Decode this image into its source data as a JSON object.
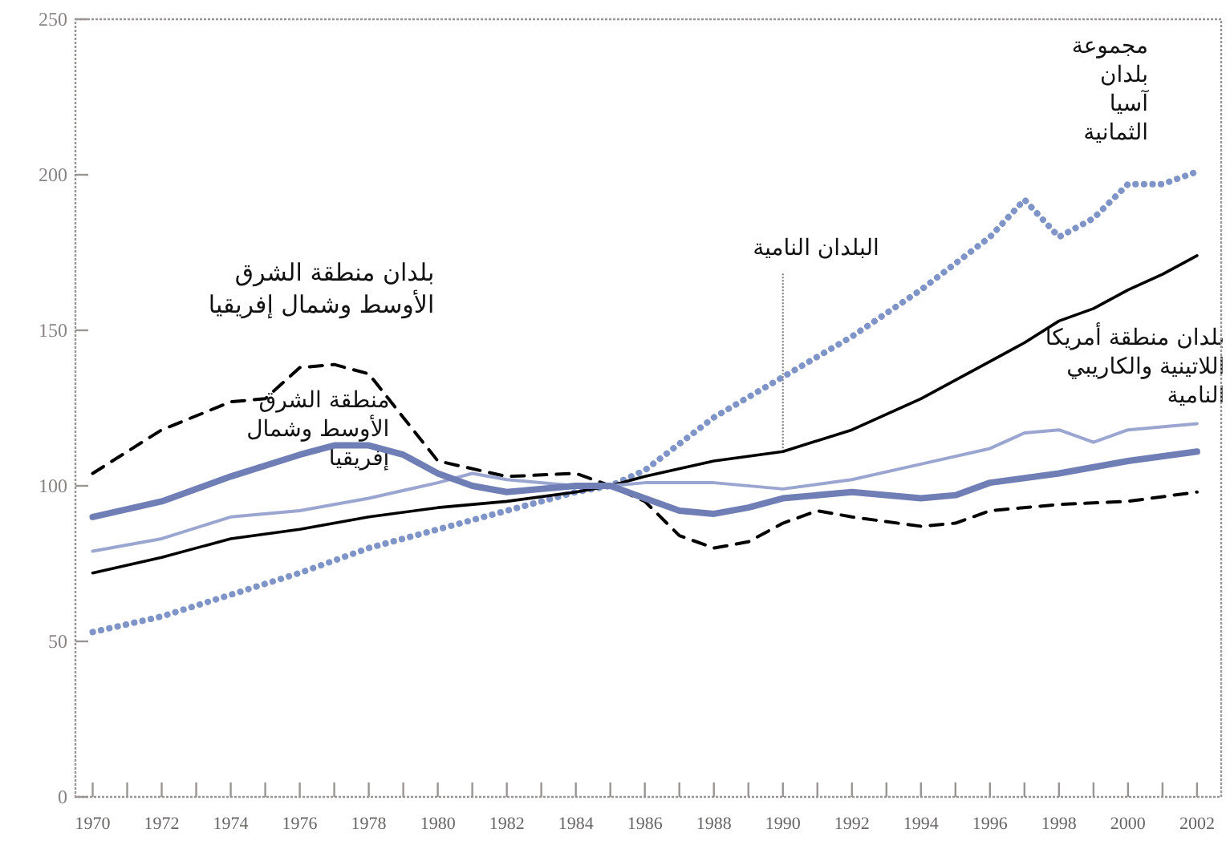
{
  "chart_data": {
    "type": "line",
    "x": [
      1970,
      1972,
      1974,
      1976,
      1978,
      1980,
      1982,
      1984,
      1985,
      1986,
      1988,
      1990,
      1992,
      1994,
      1996,
      1997,
      1998,
      1999,
      2000,
      2001,
      2002
    ],
    "series": [
      {
        "color": "#7f95c8",
        "line_style": "dotted",
        "values": [
          53,
          58,
          65,
          72,
          80,
          86,
          92,
          98,
          100,
          105,
          122,
          135,
          148,
          163,
          180,
          192,
          180,
          186,
          197,
          197,
          201
        ]
      },
      {
        "color": "#000000",
        "line_style": "solid",
        "values": [
          72,
          77,
          83,
          86,
          90,
          93,
          95,
          98,
          100,
          103,
          108,
          111,
          118,
          128,
          140,
          146,
          153,
          157,
          163,
          168,
          174
        ]
      },
      {
        "color": "#000000",
        "line_style": "dashed",
        "x": [
          1970,
          1972,
          1974,
          1975,
          1976,
          1977,
          1978,
          1979,
          1980,
          1982,
          1984,
          1985,
          1986,
          1987,
          1988,
          1989,
          1990,
          1991,
          1992,
          1994,
          1995,
          1996,
          1998,
          2000,
          2002
        ],
        "values": [
          104,
          118,
          127,
          128,
          138,
          139,
          136,
          122,
          108,
          103,
          104,
          100,
          95,
          84,
          80,
          82,
          88,
          92,
          90,
          87,
          88,
          92,
          94,
          95,
          98
        ]
      },
      {
        "color": "#9aa6d0",
        "line_style": "solid",
        "x": [
          1970,
          1972,
          1974,
          1976,
          1978,
          1980,
          1981,
          1982,
          1984,
          1985,
          1986,
          1988,
          1990,
          1992,
          1994,
          1996,
          1997,
          1998,
          1999,
          2000,
          2002
        ],
        "values": [
          79,
          83,
          90,
          92,
          96,
          101,
          104,
          102,
          100,
          100,
          101,
          101,
          99,
          102,
          107,
          112,
          117,
          118,
          114,
          118,
          120
        ]
      },
      {
        "color": "#6f7fb5",
        "line_style": "solid",
        "x": [
          1970,
          1972,
          1974,
          1976,
          1977,
          1978,
          1979,
          1980,
          1981,
          1982,
          1984,
          1985,
          1986,
          1987,
          1988,
          1989,
          1990,
          1992,
          1994,
          1995,
          1996,
          1998,
          2000,
          2002
        ],
        "values": [
          90,
          95,
          103,
          110,
          113,
          113,
          110,
          104,
          100,
          98,
          100,
          100,
          96,
          92,
          91,
          93,
          96,
          98,
          96,
          97,
          101,
          104,
          108,
          111
        ]
      }
    ],
    "xlim": [
      1969.5,
      2002.7
    ],
    "xticks": [
      1970,
      {
        "value": 1971,
        "label": null
      },
      1972,
      {
        "value": 1973,
        "label": null
      },
      1974,
      {
        "value": 1975,
        "label": null
      },
      1976,
      {
        "value": 1977,
        "label": null
      },
      1978,
      {
        "value": 1979,
        "label": null
      },
      1980,
      {
        "value": 1981,
        "label": null
      },
      1982,
      {
        "value": 1983,
        "label": null
      },
      1984,
      {
        "value": 1985,
        "label": null
      },
      1986,
      {
        "value": 1987,
        "label": null
      },
      1988,
      {
        "value": 1989,
        "label": null
      },
      1990,
      {
        "value": 1991,
        "label": null
      },
      1992,
      {
        "value": 1993,
        "label": null
      },
      1994,
      {
        "value": 1995,
        "label": null
      },
      1996,
      {
        "value": 1997,
        "label": null
      },
      1998,
      {
        "value": 1999,
        "label": null
      },
      2000,
      {
        "value": 2001,
        "label": null
      },
      2002
    ],
    "ylim": [
      0,
      250
    ],
    "yticks": [
      0,
      50,
      100,
      150,
      200,
      250
    ],
    "grid": false,
    "annotations": [
      "مجموعة بلدان آسيا الثمانية",
      {
        "text": "البلدان النامية",
        "x": 1990,
        "y": 111
      },
      "بلدان منطقة أمريكا اللاتينية والكاريبي النامية",
      "بلدان منطقة الشرق الأوسط وشمال إفريقيا",
      "منطقة الشرق الأوسط وشمال إفريقيا"
    ]
  }
}
